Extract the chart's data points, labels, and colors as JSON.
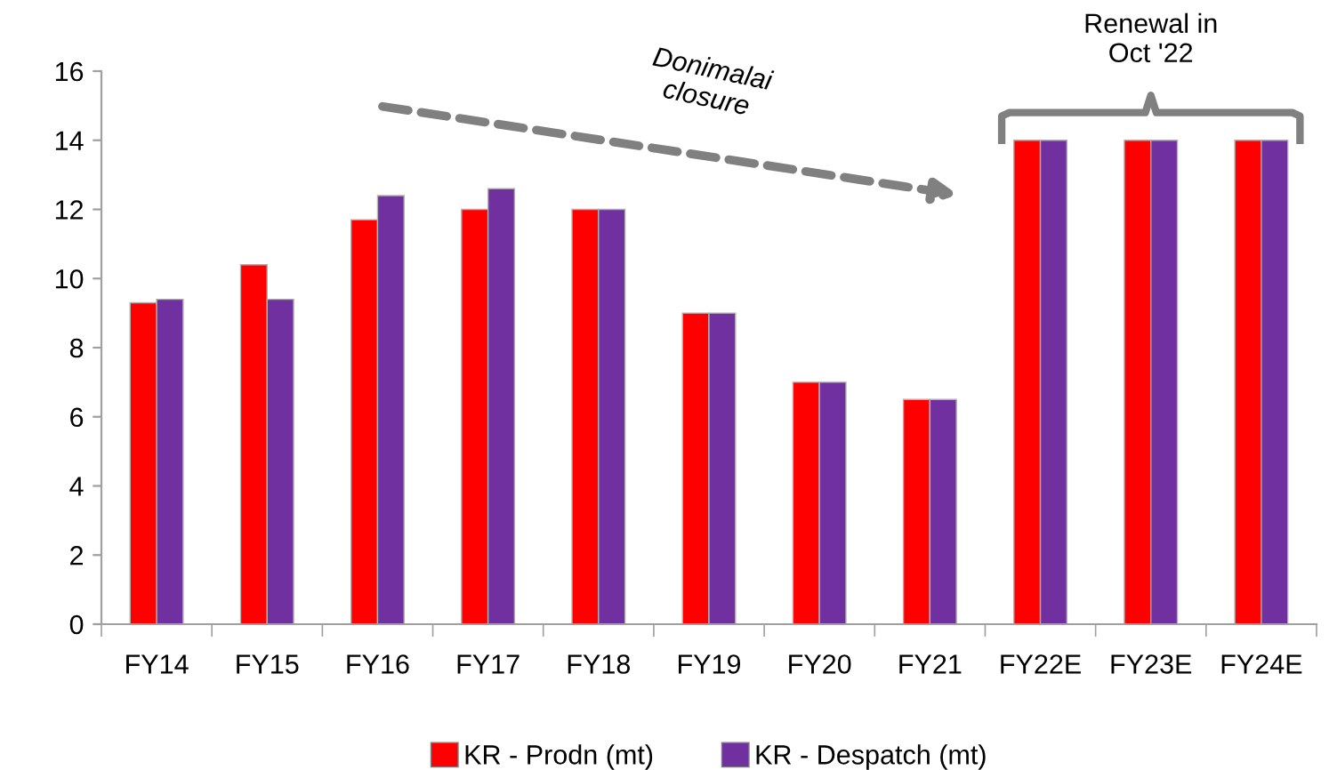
{
  "chart_data": {
    "type": "bar",
    "categories": [
      "FY14",
      "FY15",
      "FY16",
      "FY17",
      "FY18",
      "FY19",
      "FY20",
      "FY21",
      "FY22E",
      "FY23E",
      "FY24E"
    ],
    "series": [
      {
        "name": "KR - Prodn (mt)",
        "color": "#ff0000",
        "values": [
          9.3,
          10.4,
          11.7,
          12.0,
          12.0,
          9.0,
          7.0,
          6.5,
          14.0,
          14.0,
          14.0
        ]
      },
      {
        "name": "KR - Despatch (mt)",
        "color": "#7030a0",
        "values": [
          9.4,
          9.4,
          12.4,
          12.6,
          12.0,
          9.0,
          7.0,
          6.5,
          14.0,
          14.0,
          14.0
        ]
      }
    ],
    "ylim": [
      0,
      16
    ],
    "yticks": [
      0,
      2,
      4,
      6,
      8,
      10,
      12,
      14,
      16
    ],
    "grid": false,
    "legend": "bottom",
    "annotations": [
      "Donimalai closure",
      "Renewal in Oct '22"
    ]
  }
}
